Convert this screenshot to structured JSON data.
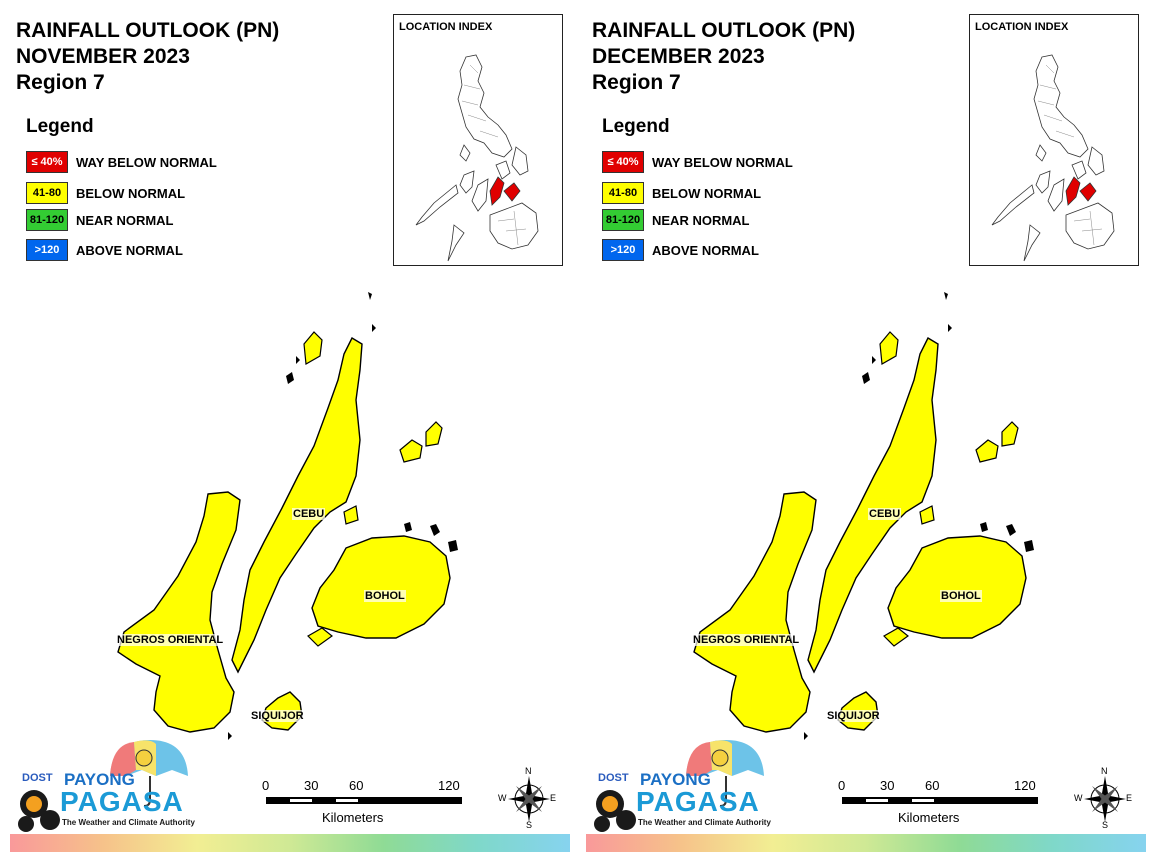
{
  "panels": [
    {
      "title_line1": "RAINFALL OUTLOOK (PN)",
      "title_line2": "NOVEMBER 2023",
      "title_line3": "Region 7",
      "legend_title": "Legend",
      "legend": [
        {
          "swatch": "≤ 40%",
          "label": "WAY BELOW NORMAL",
          "color": "#e00000",
          "text_color": "#ffffff"
        },
        {
          "swatch": "41-80",
          "label": "BELOW NORMAL",
          "color": "#ffff00",
          "text_color": "#000000"
        },
        {
          "swatch": "81-120",
          "label": "NEAR NORMAL",
          "color": "#33cc33",
          "text_color": "#000000"
        },
        {
          "swatch": ">120",
          "label": "ABOVE NORMAL",
          "color": "#0066ee",
          "text_color": "#ffffff"
        }
      ],
      "location_index_title": "LOCATION INDEX",
      "places": [
        "CEBU",
        "BOHOL",
        "NEGROS ORIENTAL",
        "SIQUIJOR"
      ],
      "province_fill": "#ffff00",
      "scale_ticks": [
        "0",
        "30",
        "60",
        "120"
      ],
      "scale_unit": "Kilometers",
      "compass": [
        "N",
        "E",
        "S",
        "W"
      ],
      "logo": {
        "dost": "DOST",
        "payong": "PAYONG",
        "pagasa": "PAGASA",
        "tagline": "The Weather and Climate Authority"
      }
    },
    {
      "title_line1": "RAINFALL OUTLOOK (PN)",
      "title_line2": "DECEMBER 2023",
      "title_line3": "Region 7",
      "legend_title": "Legend",
      "legend": [
        {
          "swatch": "≤ 40%",
          "label": "WAY BELOW NORMAL",
          "color": "#e00000",
          "text_color": "#ffffff"
        },
        {
          "swatch": "41-80",
          "label": "BELOW NORMAL",
          "color": "#ffff00",
          "text_color": "#000000"
        },
        {
          "swatch": "81-120",
          "label": "NEAR NORMAL",
          "color": "#33cc33",
          "text_color": "#000000"
        },
        {
          "swatch": ">120",
          "label": "ABOVE NORMAL",
          "color": "#0066ee",
          "text_color": "#ffffff"
        }
      ],
      "location_index_title": "LOCATION INDEX",
      "places": [
        "CEBU",
        "BOHOL",
        "NEGROS ORIENTAL",
        "SIQUIJOR"
      ],
      "province_fill": "#ffff00",
      "scale_ticks": [
        "0",
        "30",
        "60",
        "120"
      ],
      "scale_unit": "Kilometers",
      "compass": [
        "N",
        "E",
        "S",
        "W"
      ],
      "logo": {
        "dost": "DOST",
        "payong": "PAYONG",
        "pagasa": "PAGASA",
        "tagline": "The Weather and Climate Authority"
      }
    }
  ]
}
